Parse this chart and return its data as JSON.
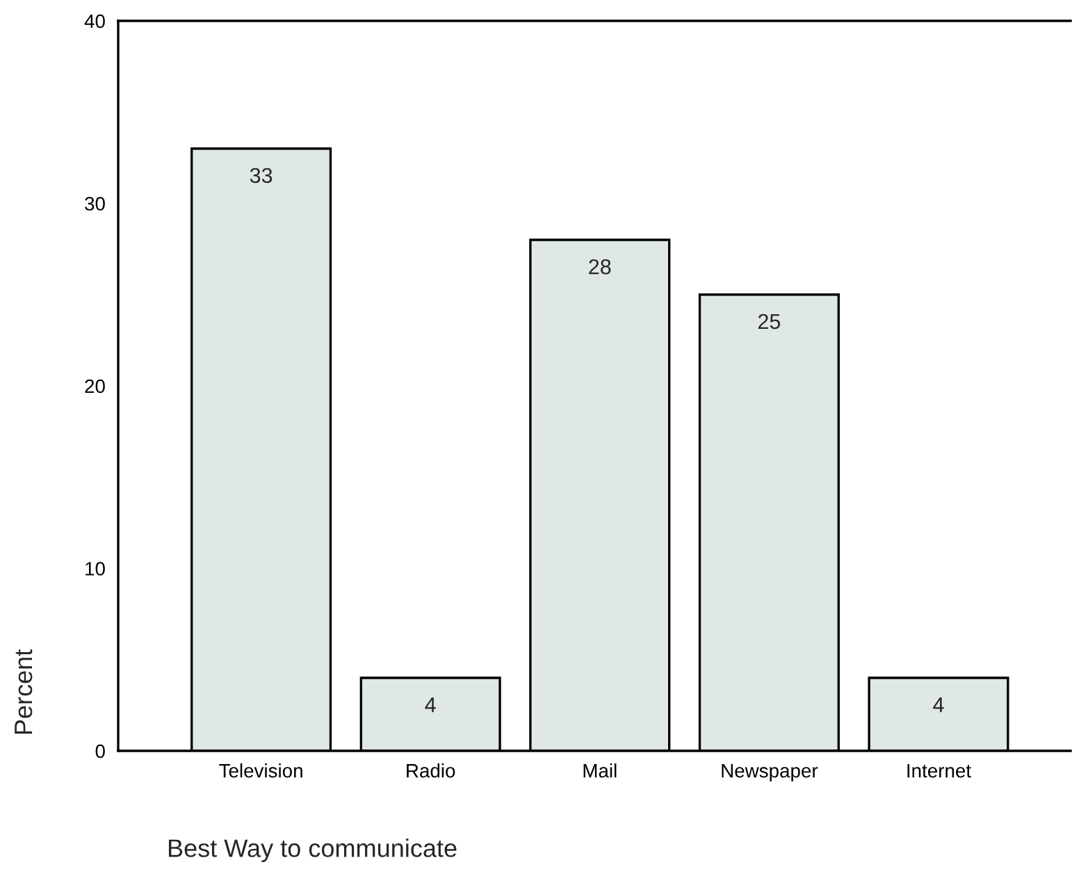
{
  "chart_data": {
    "type": "bar",
    "categories": [
      "Television",
      "Radio",
      "Mail",
      "Newspaper",
      "Internet"
    ],
    "values": [
      33,
      4,
      28,
      25,
      4
    ],
    "color": "#dfe8e4",
    "xlabel": "Best Way to communicate",
    "ylabel": "Percent",
    "ylim": [
      0,
      40
    ],
    "yticks": [
      0,
      10,
      20,
      30,
      40
    ],
    "data_labels": true,
    "grid": false,
    "legend": false
  }
}
